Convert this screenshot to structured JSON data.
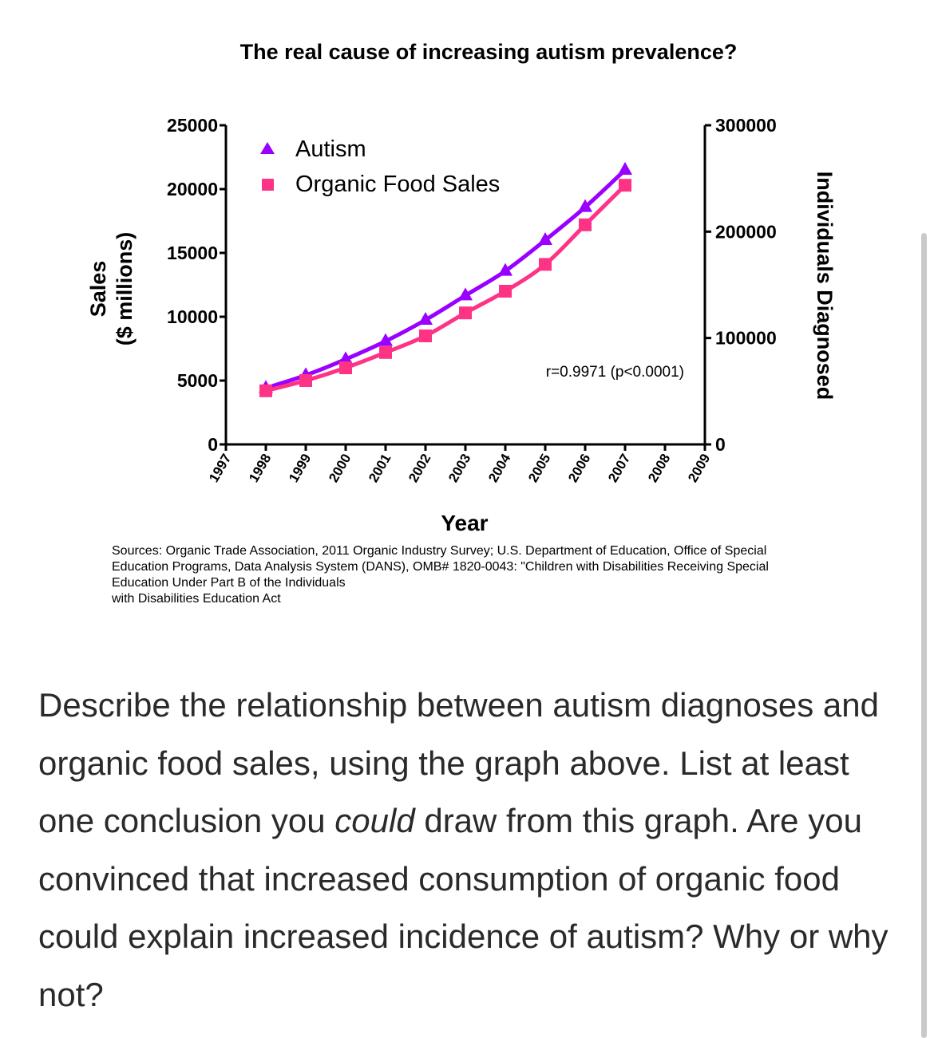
{
  "chart_data": {
    "type": "line",
    "title": "The real cause of increasing autism prevalence?",
    "xlabel": "Year",
    "ylabel_left": [
      "Sales",
      "($ millions)"
    ],
    "ylabel_right": "Individuals Diagnosed",
    "x": [
      1997,
      1998,
      1999,
      2000,
      2001,
      2002,
      2003,
      2004,
      2005,
      2006,
      2007,
      2008,
      2009
    ],
    "x_tick_labels": [
      "1997",
      "1998",
      "1999",
      "2000",
      "2001",
      "2002",
      "2003",
      "2004",
      "2005",
      "2006",
      "2007",
      "2008",
      "2009"
    ],
    "ylim_left": [
      0,
      25000
    ],
    "yticks_left": [
      "0",
      "5000",
      "10000",
      "15000",
      "20000",
      "25000"
    ],
    "ylim_right": [
      0,
      300000
    ],
    "yticks_right": [
      "0",
      "100000",
      "200000",
      "300000"
    ],
    "series": [
      {
        "name": "Autism",
        "axis": "right",
        "marker": "triangle",
        "color": "#9900ff",
        "x": [
          1998,
          1999,
          2000,
          2001,
          2002,
          2003,
          2004,
          2005,
          2006,
          2007
        ],
        "values": [
          53000,
          65000,
          80000,
          97000,
          117000,
          140000,
          163000,
          192000,
          223000,
          258000
        ]
      },
      {
        "name": "Organic Food Sales",
        "axis": "left",
        "marker": "square",
        "color": "#ff3385",
        "x": [
          1998,
          1999,
          2000,
          2001,
          2002,
          2003,
          2004,
          2005,
          2006,
          2007
        ],
        "values": [
          4200,
          5000,
          6000,
          7200,
          8500,
          10300,
          12000,
          14100,
          17200,
          20300
        ]
      }
    ],
    "legend": [
      "Autism",
      "Organic Food Sales"
    ],
    "annotation": "r=0.9971 (p<0.0001)"
  },
  "sources": [
    "Sources: Organic Trade Association,  2011 Organic Industry Survey; U.S. Department of Education, Office of Special",
    "Education Programs, Data Analysis System (DANS), OMB# 1820-0043: \"Children with Disabilities Receiving Special",
    "Education Under Part B of the Individuals",
    "with Disabilities Education Act"
  ],
  "question": {
    "part1": "Describe the relationship between autism diagnoses and organic food sales, using the graph above. List at least one conclusion you ",
    "emphasis": "could",
    "part2": " draw from this graph. Are you convinced that increased consumption of organic food could explain increased incidence of autism? Why or why not?"
  }
}
